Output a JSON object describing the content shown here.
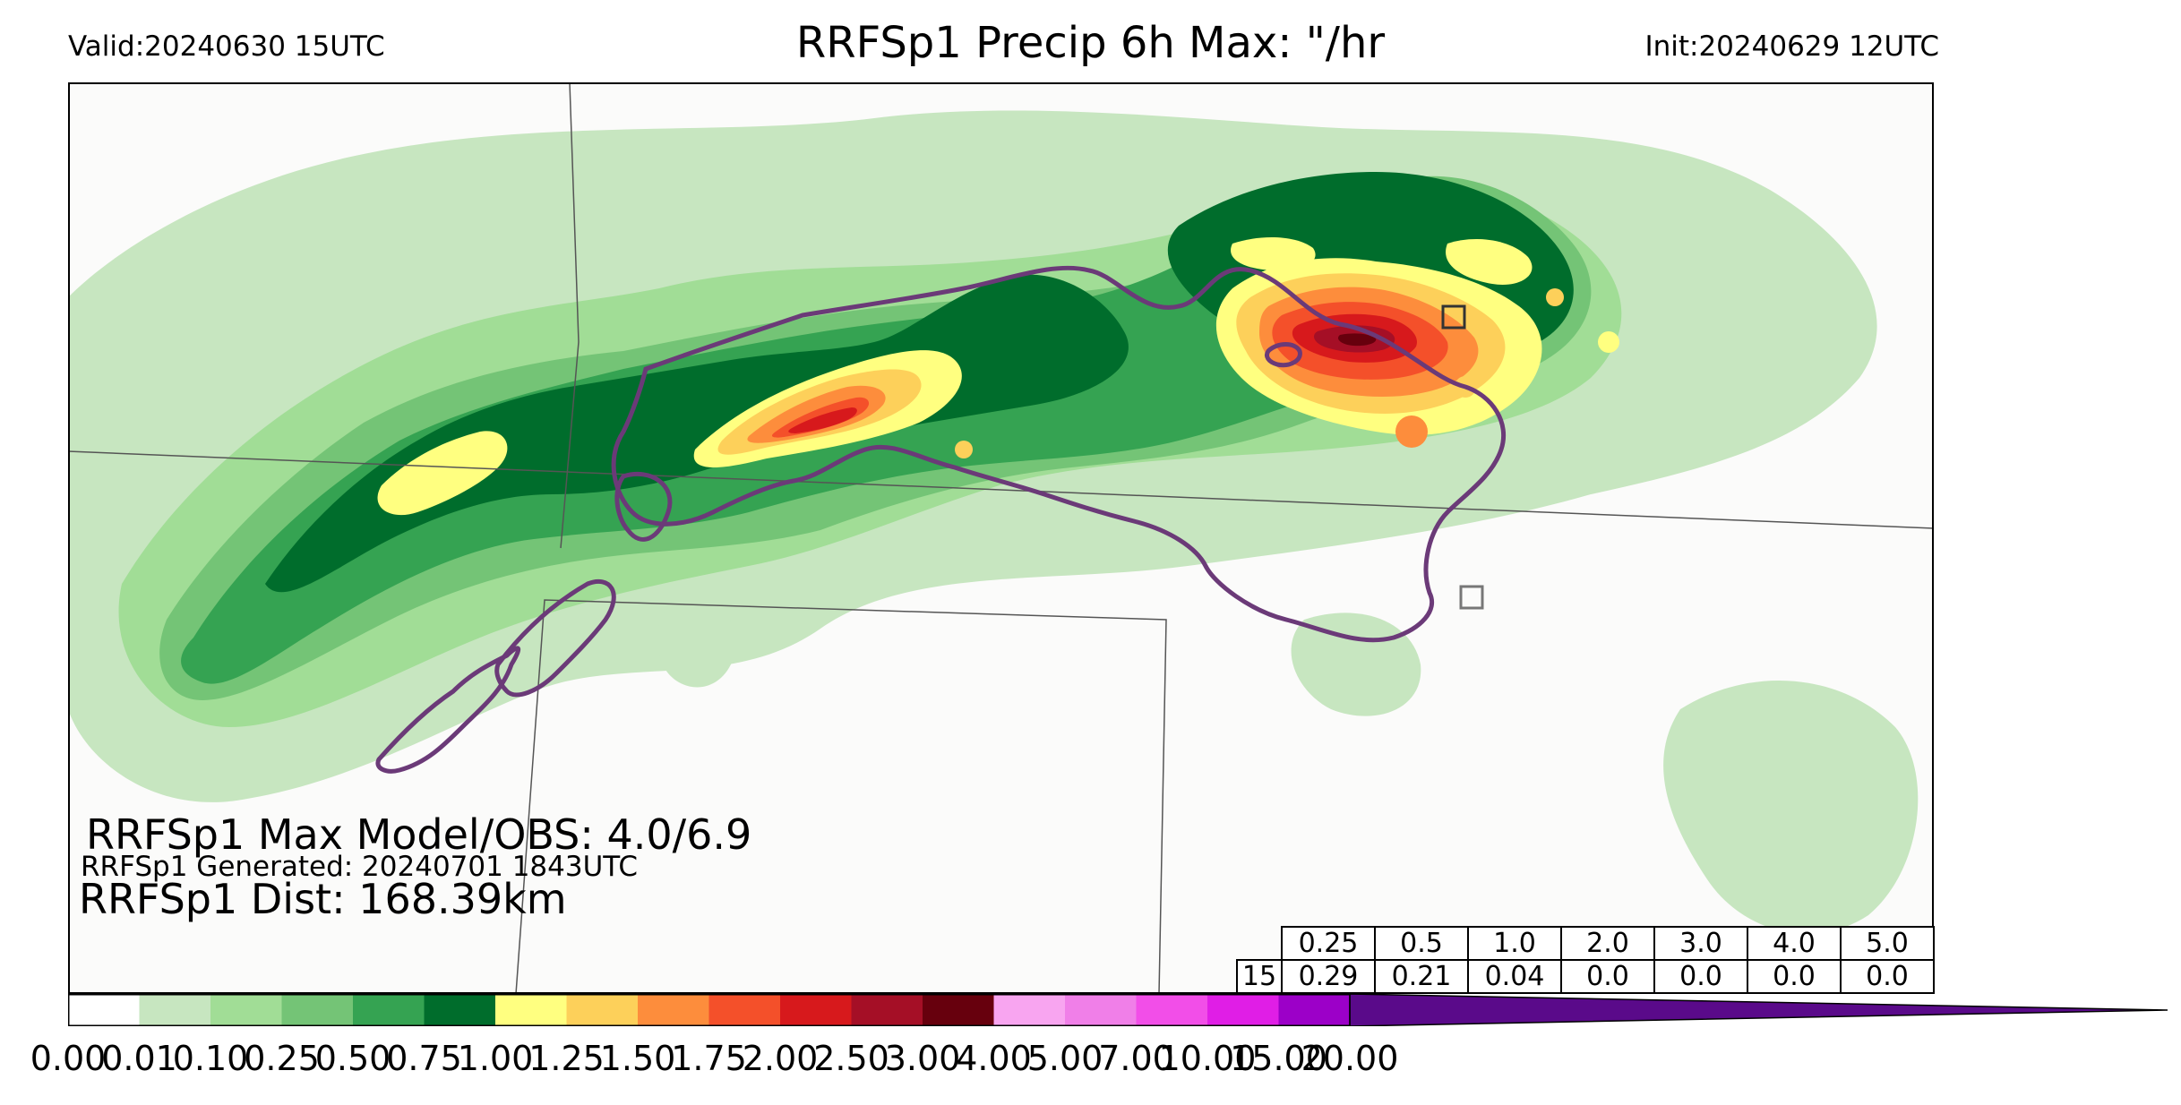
{
  "header": {
    "valid": "Valid:20240630 15UTC",
    "title": "RRFSp1 Precip 6h Max: \"/hr",
    "init": "Init:20240629 12UTC"
  },
  "overlay": {
    "max_model_obs": "RRFSp1 Max Model/OBS: 4.0/6.9",
    "generated": "RRFSp1 Generated: 20240701 1843UTC",
    "dist": "RRFSp1 Dist: 168.39km"
  },
  "stats_table": {
    "thresholds": [
      "0.25",
      "0.5",
      "1.0",
      "2.0",
      "3.0",
      "4.0",
      "5.0"
    ],
    "row_label": "15",
    "values": [
      "0.29",
      "0.21",
      "0.04",
      "0.0",
      "0.0",
      "0.0",
      "0.0"
    ]
  },
  "colorbar": {
    "ticks": [
      "0.00",
      "0.01",
      "0.10",
      "0.25",
      "0.50",
      "0.75",
      "1.00",
      "1.25",
      "1.50",
      "1.75",
      "2.00",
      "2.50",
      "3.00",
      "4.00",
      "5.00",
      "7.00",
      "10.00",
      "15.00",
      "20.00"
    ],
    "colors": [
      "#ffffff",
      "#c7e6c0",
      "#a1dd96",
      "#74c476",
      "#35a352",
      "#006d2c",
      "#ffff80",
      "#fdd05a",
      "#fd8d3c",
      "#f4502a",
      "#d7191c",
      "#a50f26",
      "#67000d",
      "#f8a5f0",
      "#f07fe8",
      "#f24ee8",
      "#e01ee6",
      "#9c00c8"
    ],
    "extend_color": "#5a0a8a"
  },
  "map_colors": {
    "outline": "#6b3a78",
    "borders": "#555555",
    "background": "#fbfbfa"
  }
}
